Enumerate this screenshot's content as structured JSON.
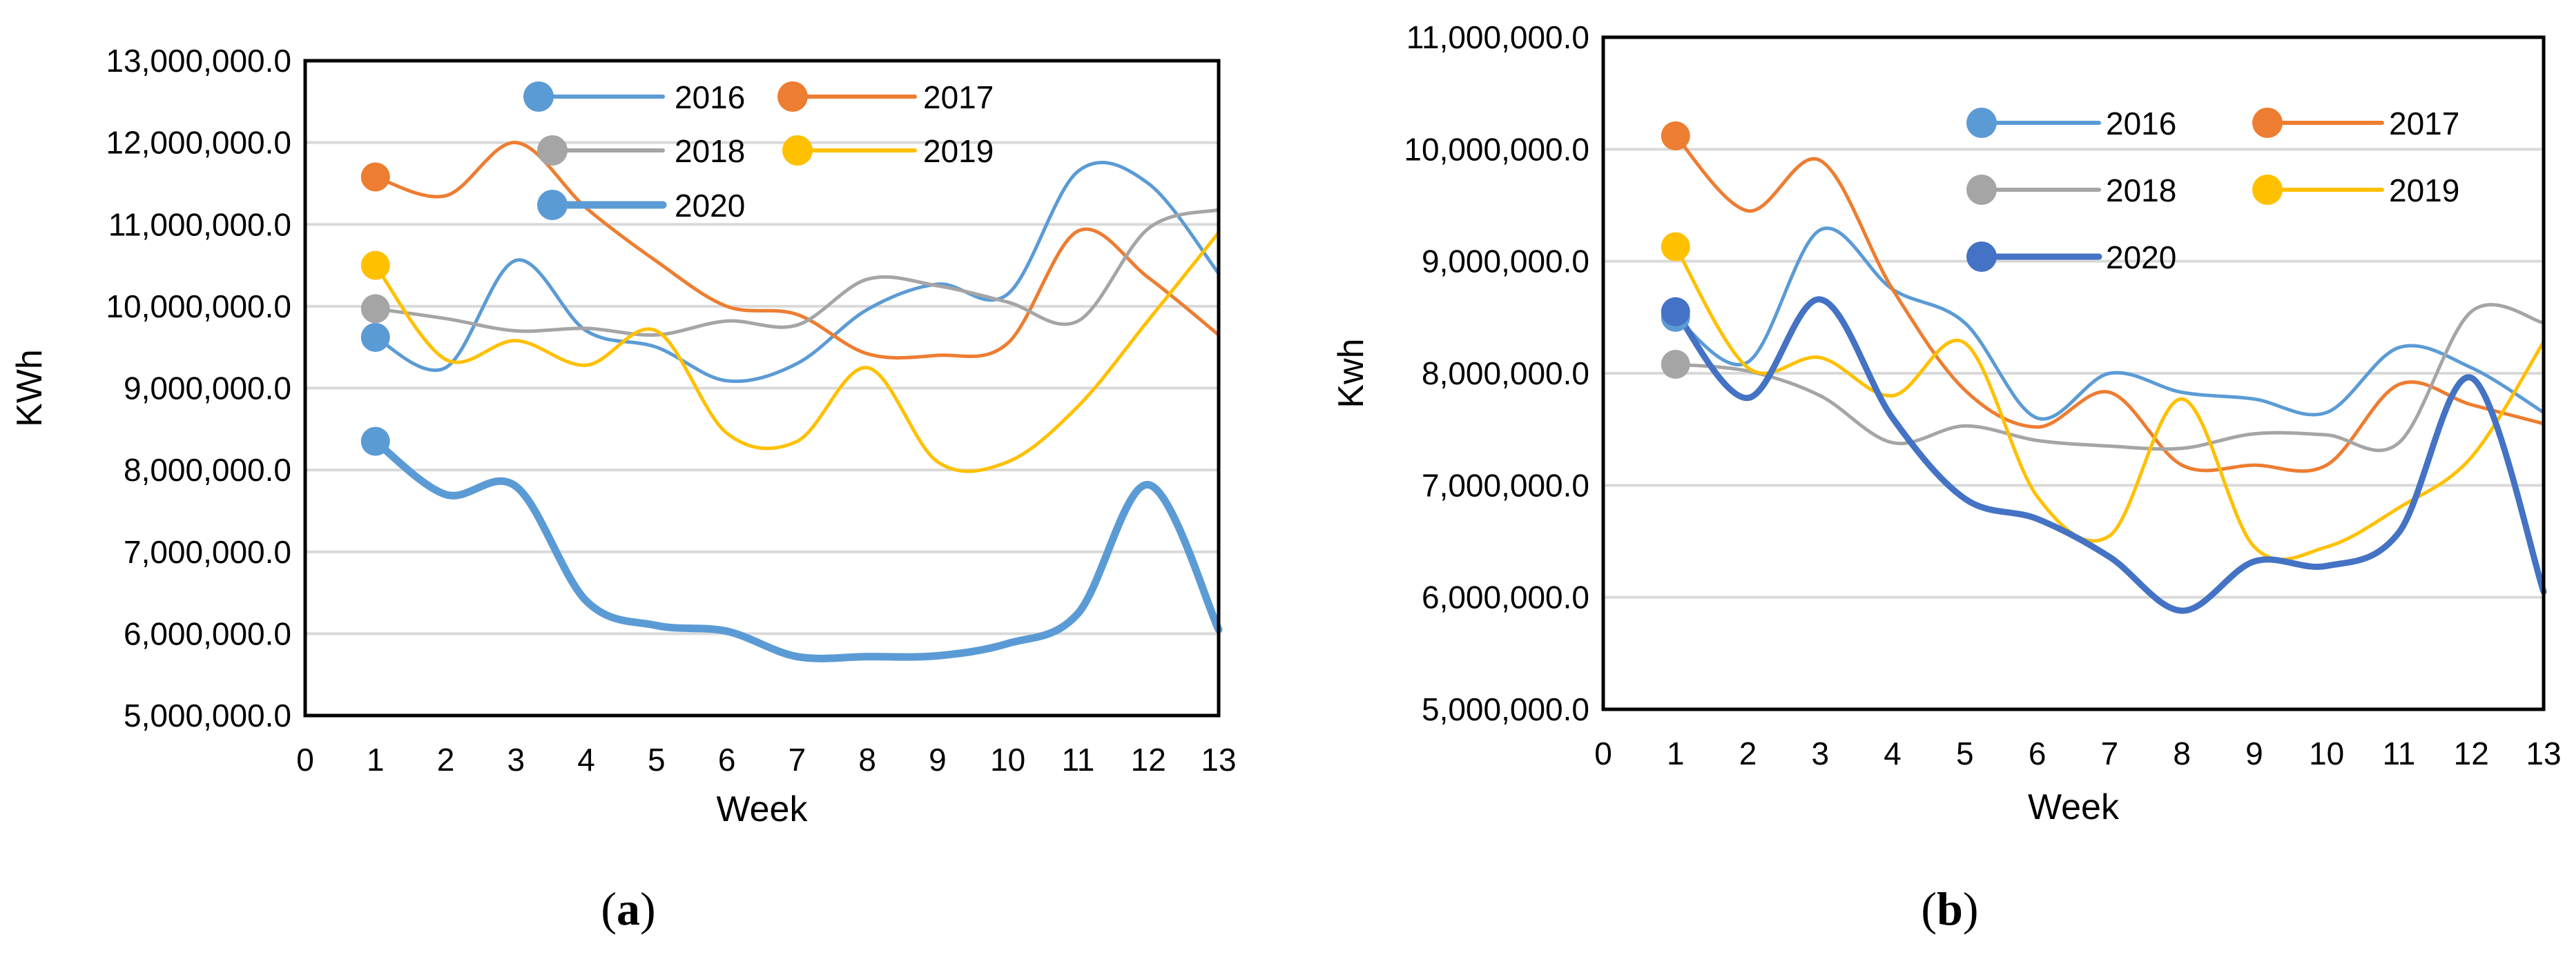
{
  "colors": {
    "2016": "#5b9bd5",
    "2017": "#ed7d31",
    "2018": "#a5a5a5",
    "2019": "#ffc000",
    "2020_a": "#5b9bd5",
    "2020_b": "#4472c4",
    "gridline": "#d9d9d9",
    "axis": "#000000"
  },
  "chart_data": [
    {
      "id": "a",
      "type": "line",
      "sublabel": "a",
      "xlabel": "Week",
      "ylabel": "KWh",
      "xlim": [
        0,
        13
      ],
      "ylim": [
        5000000,
        13000000
      ],
      "xticks": [
        "0",
        "1",
        "2",
        "3",
        "4",
        "5",
        "6",
        "7",
        "8",
        "9",
        "10",
        "11",
        "12",
        "13"
      ],
      "yticks": [
        "5,000,000.0",
        "6,000,000.0",
        "7,000,000.0",
        "8,000,000.0",
        "9,000,000.0",
        "10,000,000.0",
        "11,000,000.0",
        "12,000,000.0",
        "13,000,000.0"
      ],
      "x": [
        1,
        2,
        3,
        4,
        5,
        6,
        7,
        8,
        9,
        10,
        11,
        12,
        13
      ],
      "series": [
        {
          "name": "2016",
          "color_key": "2016",
          "width": 5,
          "values": [
            9620000,
            9250000,
            10560000,
            9700000,
            9500000,
            9090000,
            9300000,
            9960000,
            10270000,
            10150000,
            11650000,
            11500000,
            10400000
          ]
        },
        {
          "name": "2017",
          "color_key": "2017",
          "width": 5,
          "values": [
            11580000,
            11350000,
            12000000,
            11200000,
            10550000,
            10000000,
            9900000,
            9420000,
            9400000,
            9550000,
            10920000,
            10350000,
            9650000
          ]
        },
        {
          "name": "2018",
          "color_key": "2018",
          "width": 5,
          "values": [
            9970000,
            9850000,
            9700000,
            9730000,
            9650000,
            9820000,
            9770000,
            10330000,
            10250000,
            10050000,
            9820000,
            10950000,
            11180000
          ]
        },
        {
          "name": "2019",
          "color_key": "2019",
          "width": 5,
          "values": [
            10500000,
            9350000,
            9580000,
            9280000,
            9700000,
            8450000,
            8350000,
            9250000,
            8100000,
            8100000,
            8780000,
            9830000,
            10900000
          ]
        },
        {
          "name": "2020",
          "color_key": "2020_a",
          "width": 11,
          "values": [
            8350000,
            7700000,
            7800000,
            6400000,
            6100000,
            6030000,
            5720000,
            5720000,
            5730000,
            5880000,
            6250000,
            7820000,
            6050000
          ]
        }
      ],
      "legend": [
        "2016",
        "2017",
        "2018",
        "2019",
        "2020"
      ],
      "legend_position": "top-center"
    },
    {
      "id": "b",
      "type": "line",
      "sublabel": "b",
      "xlabel": "Week",
      "ylabel": "Kwh",
      "xlim": [
        0,
        13
      ],
      "ylim": [
        5000000,
        11000000
      ],
      "xticks": [
        "0",
        "1",
        "2",
        "3",
        "4",
        "5",
        "6",
        "7",
        "8",
        "9",
        "10",
        "11",
        "12",
        "13"
      ],
      "yticks": [
        "5,000,000.0",
        "6,000,000.0",
        "7,000,000.0",
        "8,000,000.0",
        "9,000,000.0",
        "10,000,000.0",
        "11,000,000.0"
      ],
      "x": [
        1,
        2,
        3,
        4,
        5,
        6,
        7,
        8,
        9,
        10,
        11,
        12,
        13
      ],
      "series": [
        {
          "name": "2016",
          "color_key": "2016",
          "width": 5,
          "values": [
            8500000,
            8100000,
            9280000,
            8750000,
            8450000,
            7600000,
            8000000,
            7830000,
            7770000,
            7650000,
            8230000,
            8050000,
            7650000
          ]
        },
        {
          "name": "2017",
          "color_key": "2017",
          "width": 5,
          "values": [
            10120000,
            9450000,
            9900000,
            8750000,
            7850000,
            7520000,
            7830000,
            7180000,
            7180000,
            7180000,
            7900000,
            7720000,
            7550000
          ]
        },
        {
          "name": "2018",
          "color_key": "2018",
          "width": 5,
          "values": [
            8080000,
            8020000,
            7800000,
            7380000,
            7530000,
            7400000,
            7350000,
            7330000,
            7460000,
            7450000,
            7380000,
            8550000,
            8450000
          ]
        },
        {
          "name": "2019",
          "color_key": "2019",
          "width": 5,
          "values": [
            9130000,
            8050000,
            8140000,
            7800000,
            8270000,
            6900000,
            6550000,
            7770000,
            6450000,
            6450000,
            6800000,
            7250000,
            8280000
          ]
        },
        {
          "name": "2020",
          "color_key": "2020_b",
          "width": 9,
          "values": [
            8550000,
            7780000,
            8660000,
            7600000,
            6880000,
            6700000,
            6360000,
            5880000,
            6320000,
            6280000,
            6580000,
            7960000,
            6050000
          ]
        }
      ],
      "legend": [
        "2016",
        "2017",
        "2018",
        "2019",
        "2020"
      ],
      "legend_position": "top-center"
    }
  ]
}
